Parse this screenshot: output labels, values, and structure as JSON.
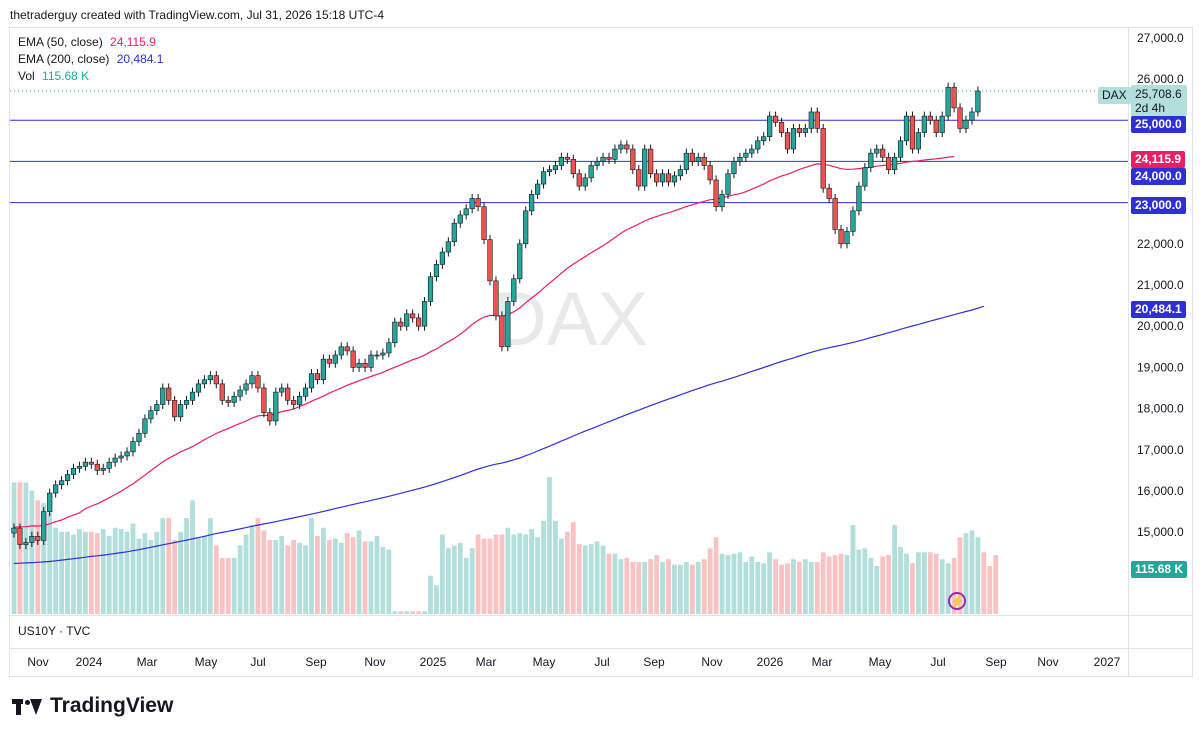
{
  "header": {
    "attribution": "thetraderguy created with TradingView.com, Jul 31, 2026 15:18 UTC-4"
  },
  "legend": {
    "ema50_label": "EMA (50, close)",
    "ema50_value": "24,115.9",
    "ema50_color": "#e91e63",
    "ema200_label": "EMA (200, close)",
    "ema200_value": "20,484.1",
    "ema200_color": "#2e30d6",
    "vol_label": "Vol",
    "vol_value": "115.68 K",
    "vol_color": "#26a69a"
  },
  "watermark": "DAX",
  "symbol_tag": "DAX",
  "price_tag": {
    "value": "25,708.6",
    "countdown": "2d 4h"
  },
  "level_tags": [
    "25,000.0",
    "24,000.0",
    "23,000.0"
  ],
  "ema50_tag": "24,115.9",
  "ema200_tag": "20,484.1",
  "vol_tag": "115.68 K",
  "lower_pane_label": "US10Y · TVC",
  "brand": "TradingView",
  "colors": {
    "up": "#26a69a",
    "down": "#ef5350",
    "up_vol": "#b2dfdb",
    "down_vol": "#f8c3c2",
    "level": "#2e30d6"
  },
  "chart_data": {
    "type": "candlestick",
    "interval": "weekly",
    "y_axis_ticks": [
      "27,000.0",
      "26,000.0",
      "25,000.0",
      "24,000.0",
      "23,000.0",
      "22,000.0",
      "21,000.0",
      "20,000.0",
      "19,000.0",
      "18,000.0",
      "17,000.0",
      "16,000.0",
      "15,000.0"
    ],
    "ylim": [
      14000,
      27700
    ],
    "x_axis_ticks": [
      "Nov",
      "2024",
      "Mar",
      "May",
      "Jul",
      "Sep",
      "Nov",
      "2025",
      "Mar",
      "May",
      "Jul",
      "Sep",
      "Nov",
      "2026",
      "Mar",
      "May",
      "Jul",
      "Sep",
      "Nov",
      "2027"
    ],
    "horizontal_levels": [
      25000,
      24000,
      23000
    ],
    "last_price": 25708.6,
    "close": [
      15100,
      14700,
      14750,
      14900,
      14800,
      15500,
      15950,
      16150,
      16250,
      16400,
      16550,
      16600,
      16700,
      16650,
      16500,
      16550,
      16700,
      16800,
      16850,
      16950,
      17200,
      17400,
      17750,
      17950,
      18100,
      18500,
      18200,
      17800,
      18100,
      18200,
      18400,
      18600,
      18700,
      18800,
      18600,
      18200,
      18150,
      18300,
      18450,
      18600,
      18800,
      18500,
      17900,
      17700,
      18400,
      18500,
      18200,
      18100,
      18300,
      18500,
      18850,
      18700,
      19200,
      19100,
      19300,
      19500,
      19400,
      19000,
      19100,
      19000,
      19300,
      19300,
      19350,
      19600,
      20100,
      20000,
      20300,
      20200,
      20000,
      20600,
      21200,
      21500,
      21800,
      22050,
      22500,
      22700,
      22850,
      23100,
      22900,
      22100,
      21100,
      20250,
      19500,
      20600,
      21150,
      22000,
      22800,
      23200,
      23450,
      23750,
      23800,
      23900,
      24100,
      24050,
      23700,
      23400,
      23600,
      23900,
      24000,
      24100,
      24050,
      24300,
      24400,
      24300,
      23800,
      23400,
      24300,
      23700,
      23500,
      23700,
      23500,
      23650,
      23800,
      24200,
      24000,
      24100,
      23900,
      23550,
      22900,
      23200,
      23700,
      24000,
      24100,
      24200,
      24300,
      24500,
      24600,
      25100,
      24950,
      24700,
      24300,
      24800,
      24700,
      24800,
      25200,
      24800,
      23350,
      23100,
      22350,
      22000,
      22300,
      22800,
      23400,
      23850,
      24200,
      24300,
      24100,
      23800,
      24100,
      24500,
      25100,
      24300,
      24700,
      25100,
      25000,
      24700,
      25100,
      25800,
      25300,
      24800,
      25000,
      25200,
      25708.6
    ],
    "ema50": [
      15120,
      15130,
      15133,
      15153,
      15150,
      15160,
      15205,
      15256,
      15297,
      15365,
      15415,
      15467,
      15570,
      15635,
      15690,
      15762,
      15835,
      15916,
      15996,
      16084,
      16172,
      16280,
      16383,
      16496,
      16599,
      16706,
      16796,
      16871,
      16951,
      17011,
      17078,
      17160,
      17244,
      17320,
      17396,
      17461,
      17515,
      17582,
      17640,
      17700,
      17770,
      17822,
      17838,
      17833,
      17877,
      17926,
      17957,
      17991,
      18052,
      18109,
      18180,
      18241,
      18302,
      18376,
      18439,
      18502,
      18567,
      18621,
      18677,
      18727,
      18780,
      18830,
      18879,
      18945,
      19002,
      19063,
      19125,
      19188,
      19234,
      19296,
      19381,
      19445,
      19541,
      19623,
      19705,
      19805,
      19918,
      20044,
      20141,
      20224,
      20261,
      20261,
      20237,
      20289,
      20350,
      20442,
      20567,
      20685,
      20793,
      20922,
      21046,
      21162,
      21290,
      21406,
      21508,
      21601,
      21688,
      21785,
      21867,
      21954,
      22051,
      22154,
      22254,
      22345,
      22411,
      22480,
      22554,
      22614,
      22660,
      22713,
      22753,
      22800,
      22852,
      22902,
      22946,
      22989,
      23032,
      23070,
      23080,
      23118,
      23150,
      23190,
      23217,
      23264,
      23325,
      23388,
      23448,
      23528,
      23588,
      23649,
      23687,
      23746,
      23805,
      23855,
      23897,
      23940,
      23930,
      23906,
      23867,
      23824,
      23808,
      23811,
      23825,
      23839,
      23862,
      23884,
      23900,
      23915,
      23930,
      23954,
      23981,
      23999,
      24014,
      24034,
      24049,
      24063,
      24080,
      24105,
      24115.9
    ],
    "ema200": [
      14240,
      14248,
      14256,
      14263,
      14269,
      14278,
      14290,
      14305,
      14322,
      14339,
      14356,
      14375,
      14394,
      14412,
      14428,
      14445,
      14464,
      14483,
      14504,
      14525,
      14550,
      14576,
      14605,
      14634,
      14663,
      14693,
      14722,
      14751,
      14779,
      14808,
      14838,
      14869,
      14901,
      14934,
      14965,
      14994,
      15021,
      15051,
      15081,
      15112,
      15144,
      15173,
      15201,
      15227,
      15256,
      15288,
      15318,
      15347,
      15378,
      15408,
      15440,
      15472,
      15506,
      15540,
      15573,
      15607,
      15641,
      15674,
      15707,
      15738,
      15771,
      15804,
      15837,
      15872,
      15908,
      15944,
      15982,
      16020,
      16056,
      16095,
      16138,
      16182,
      16228,
      16277,
      16325,
      16375,
      16429,
      16482,
      16533,
      16576,
      16616,
      16650,
      16678,
      16717,
      16757,
      16801,
      16856,
      16910,
      16968,
      17028,
      17088,
      17149,
      17210,
      17273,
      17336,
      17395,
      17453,
      17509,
      17568,
      17626,
      17683,
      17741,
      17798,
      17855,
      17910,
      17962,
      18019,
      18074,
      18127,
      18180,
      18231,
      18282,
      18334,
      18385,
      18436,
      18486,
      18535,
      18583,
      18626,
      18666,
      18712,
      18758,
      18806,
      18854,
      18902,
      18950,
      18998,
      19046,
      19096,
      19143,
      19187,
      19230,
      19276,
      19322,
      19367,
      19408,
      19445,
      19479,
      19508,
      19540,
      19573,
      19606,
      19642,
      19683,
      19723,
      19763,
      19801,
      19842,
      19882,
      19924,
      19965,
      20006,
      20044,
      20084,
      20124,
      20163,
      20201,
      20241,
      20280,
      20319,
      20356,
      20393,
      20436,
      20484.1
    ],
    "volume_relative": [
      0.96,
      0.96,
      0.96,
      0.9,
      0.83,
      0.81,
      0.74,
      0.63,
      0.6,
      0.6,
      0.58,
      0.62,
      0.6,
      0.6,
      0.59,
      0.62,
      0.57,
      0.63,
      0.62,
      0.6,
      0.66,
      0.55,
      0.59,
      0.54,
      0.6,
      0.7,
      0.7,
      0.54,
      0.6,
      0.7,
      0.83,
      0.56,
      0.57,
      0.7,
      0.5,
      0.41,
      0.41,
      0.41,
      0.5,
      0.58,
      0.65,
      0.7,
      0.61,
      0.54,
      0.54,
      0.57,
      0.5,
      0.54,
      0.52,
      0.5,
      0.7,
      0.57,
      0.63,
      0.54,
      0.55,
      0.52,
      0.59,
      0.56,
      0.61,
      0.53,
      0.53,
      0.57,
      0.49,
      0.47,
      0.02,
      0.02,
      0.02,
      0.02,
      0.02,
      0.02,
      0.28,
      0.21,
      0.58,
      0.48,
      0.5,
      0.52,
      0.41,
      0.48,
      0.58,
      0.55,
      0.55,
      0.58,
      0.58,
      0.63,
      0.58,
      0.59,
      0.58,
      0.62,
      0.56,
      0.68,
      1.0,
      0.68,
      0.55,
      0.6,
      0.67,
      0.51,
      0.5,
      0.51,
      0.53,
      0.5,
      0.44,
      0.44,
      0.4,
      0.41,
      0.38,
      0.38,
      0.38,
      0.4,
      0.43,
      0.38,
      0.4,
      0.36,
      0.36,
      0.38,
      0.36,
      0.38,
      0.4,
      0.48,
      0.56,
      0.44,
      0.43,
      0.44,
      0.45,
      0.38,
      0.42,
      0.38,
      0.37,
      0.45,
      0.4,
      0.36,
      0.37,
      0.4,
      0.38,
      0.4,
      0.38,
      0.38,
      0.45,
      0.42,
      0.43,
      0.44,
      0.43,
      0.65,
      0.47,
      0.48,
      0.41,
      0.35,
      0.42,
      0.43,
      0.65,
      0.49,
      0.44,
      0.37,
      0.45,
      0.45,
      0.45,
      0.44,
      0.4,
      0.37,
      0.41,
      0.56,
      0.59,
      0.61,
      0.56,
      0.45,
      0.35,
      0.43
    ]
  }
}
